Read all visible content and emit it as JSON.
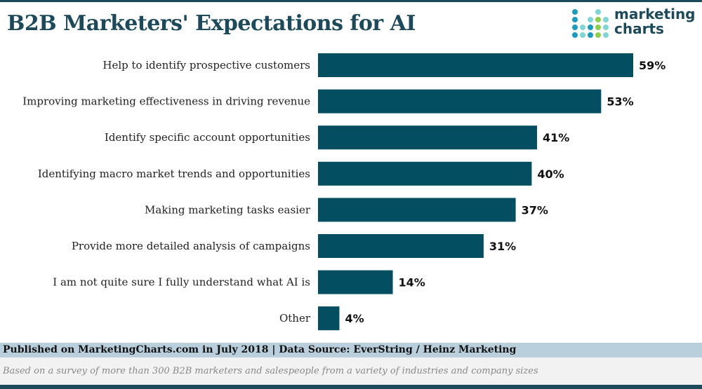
{
  "chart_data": {
    "type": "bar",
    "orientation": "horizontal",
    "title": "B2B Marketers' Expectations for AI",
    "categories": [
      "Help to identify prospective customers",
      "Improving marketing effectiveness in driving revenue",
      "Identify specific account opportunities",
      "Identifying macro market trends and opportunities",
      "Making marketing tasks easier",
      "Provide more detailed analysis of campaigns",
      "I am not quite sure I fully understand what AI is",
      "Other"
    ],
    "values": [
      59,
      53,
      41,
      40,
      37,
      31,
      14,
      4
    ],
    "data_labels": [
      "59%",
      "53%",
      "41%",
      "40%",
      "37%",
      "31%",
      "14%",
      "4%"
    ],
    "unit": "%",
    "xlim": [
      0,
      59
    ],
    "grid": false,
    "bar_color": "#044e62"
  },
  "logo": {
    "text_line1": "marketing",
    "text_line2": "charts"
  },
  "footer": {
    "source": "Published on MarketingCharts.com in July 2018 | Data Source: EverString / Heinz Marketing",
    "note": "Based on a survey of more than 300 B2B marketers and salespeople from a variety of industries and company sizes"
  }
}
